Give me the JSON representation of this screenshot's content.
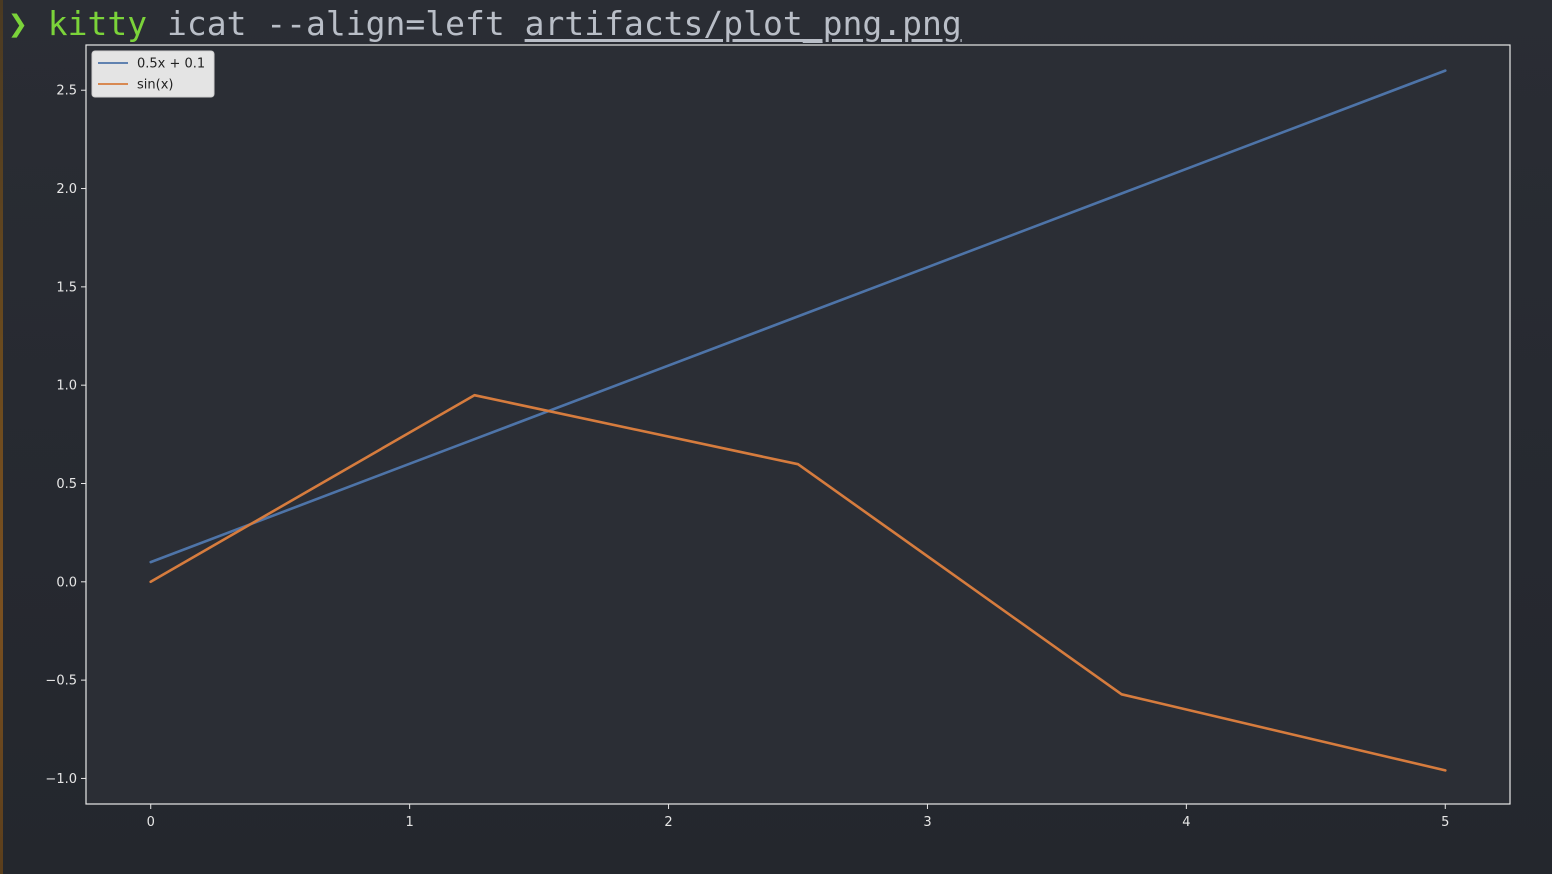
{
  "terminal": {
    "prompt_symbol": "❯",
    "command": "kitty",
    "args": "icat --align=left",
    "path": "artifacts/plot_png.png",
    "colors": {
      "prompt": "#7bd33a",
      "text": "#b9bec7",
      "background": "#272a30"
    }
  },
  "chart_data": {
    "type": "line",
    "title": "",
    "xlabel": "",
    "ylabel": "",
    "xlim": [
      -0.25,
      5.25
    ],
    "ylim": [
      -1.13,
      2.73
    ],
    "x_ticks": [
      0,
      1,
      2,
      3,
      4,
      5
    ],
    "x_tick_labels": [
      "0",
      "1",
      "2",
      "3",
      "4",
      "5"
    ],
    "y_ticks": [
      -1.0,
      -0.5,
      0.0,
      0.5,
      1.0,
      1.5,
      2.0,
      2.5
    ],
    "y_tick_labels": [
      "−1.0",
      "−0.5",
      "0.0",
      "0.5",
      "1.0",
      "1.5",
      "2.0",
      "2.5"
    ],
    "grid": false,
    "legend": "top-left",
    "series": [
      {
        "name": "0.5x + 0.1",
        "color": "#4e74a8",
        "x": [
          0,
          1.25,
          2.5,
          3.75,
          5
        ],
        "y": [
          0.1,
          0.725,
          1.35,
          1.975,
          2.6
        ]
      },
      {
        "name": "sin(x)",
        "color": "#d67c3e",
        "x": [
          0,
          1.25,
          2.5,
          3.75,
          5
        ],
        "y": [
          0.0,
          0.949,
          0.598,
          -0.572,
          -0.959
        ]
      }
    ]
  }
}
